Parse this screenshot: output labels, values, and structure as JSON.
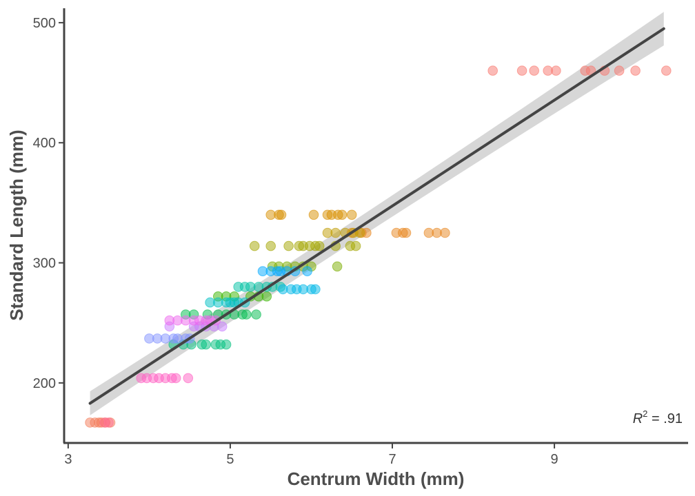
{
  "chart_data": {
    "type": "scatter",
    "xlabel": "Centrum Width (mm)",
    "ylabel": "Standard Length (mm)",
    "xlim": [
      2.95,
      10.65
    ],
    "ylim": [
      150,
      512
    ],
    "x_ticks": [
      3,
      5,
      7,
      9
    ],
    "y_ticks": [
      200,
      300,
      400,
      500
    ],
    "grid": false,
    "legend": "none",
    "annotation": {
      "r_label": "R",
      "r_sup": "2",
      "r_value": " = .91"
    },
    "fit": {
      "type": "linear",
      "x": [
        3.27,
        10.35
      ],
      "y": [
        183,
        495
      ],
      "band_halfwidth_ends": [
        10,
        14
      ],
      "color": "#444444",
      "band_color": "#bdbdbd"
    },
    "series": [
      {
        "color": "#F8766D",
        "y": 460,
        "x": [
          8.24,
          8.6,
          8.75,
          8.92,
          9.02,
          9.38,
          9.45,
          9.62,
          9.8,
          10.0,
          10.38
        ]
      },
      {
        "color": "#F37B59",
        "y": 167,
        "x": [
          3.27,
          3.33,
          3.38,
          3.41,
          3.46,
          3.52
        ]
      },
      {
        "color": "#E7851E",
        "y": 325,
        "x": [
          6.5,
          6.62,
          6.68,
          7.05,
          7.13,
          7.17,
          7.45,
          7.55,
          7.65
        ]
      },
      {
        "color": "#D89000",
        "y": 340,
        "x": [
          5.5,
          5.6,
          5.63,
          6.03,
          6.2,
          6.25,
          6.33,
          6.38,
          6.5
        ]
      },
      {
        "color": "#C09B00",
        "y": 325,
        "x": [
          6.2,
          6.3,
          6.42,
          6.52,
          6.6
        ]
      },
      {
        "color": "#A3A500",
        "y": 314,
        "x": [
          5.3,
          5.5,
          5.72,
          5.85,
          5.9,
          5.98,
          6.05,
          6.1,
          6.3,
          6.48,
          6.55
        ]
      },
      {
        "color": "#7CAE00",
        "y": 297,
        "x": [
          5.52,
          5.6,
          5.7,
          5.8,
          5.9,
          6.0,
          6.32
        ]
      },
      {
        "color": "#39B600",
        "y": 272,
        "x": [
          4.85,
          4.95,
          5.05,
          5.25,
          5.35,
          5.45
        ]
      },
      {
        "color": "#00BB4E",
        "y": 257,
        "x": [
          4.45,
          4.55,
          4.72,
          4.85,
          4.95,
          5.05,
          5.15,
          5.2,
          5.32
        ]
      },
      {
        "color": "#00BF7D",
        "y": 232,
        "x": [
          4.3,
          4.42,
          4.52,
          4.65,
          4.7,
          4.82,
          4.88,
          4.95
        ]
      },
      {
        "color": "#00C1A3",
        "y": 280,
        "x": [
          5.1,
          5.18,
          5.25,
          5.35,
          5.45,
          5.52,
          5.62
        ]
      },
      {
        "color": "#00BFC4",
        "y": 267,
        "x": [
          4.75,
          4.85,
          4.95,
          5.0,
          5.05,
          5.1,
          5.18
        ]
      },
      {
        "color": "#00B8E7",
        "y": 278,
        "x": [
          5.65,
          5.75,
          5.82,
          5.9,
          6.0,
          6.05
        ]
      },
      {
        "color": "#00A9FF",
        "y": 293,
        "x": [
          5.4,
          5.5,
          5.58,
          5.62,
          5.7,
          5.8,
          5.95
        ]
      },
      {
        "color": "#8494FF",
        "y": 237,
        "x": [
          4.0,
          4.1,
          4.2,
          4.3,
          4.35,
          4.45,
          4.5
        ]
      },
      {
        "color": "#C77CFF",
        "y": 247,
        "x": [
          4.25,
          4.55,
          4.62,
          4.7,
          4.8,
          4.9
        ]
      },
      {
        "color": "#ED68ED",
        "y": 252,
        "x": [
          4.25,
          4.35,
          4.45,
          4.55,
          4.62,
          4.7,
          4.75,
          4.82
        ]
      },
      {
        "color": "#FF61C3",
        "y": 204,
        "x": [
          3.9,
          3.97,
          4.05,
          4.12,
          4.2,
          4.28,
          4.33,
          4.48
        ]
      },
      {
        "color": "#FF6C91",
        "y": 167,
        "x": [
          3.45,
          3.5
        ]
      }
    ]
  }
}
